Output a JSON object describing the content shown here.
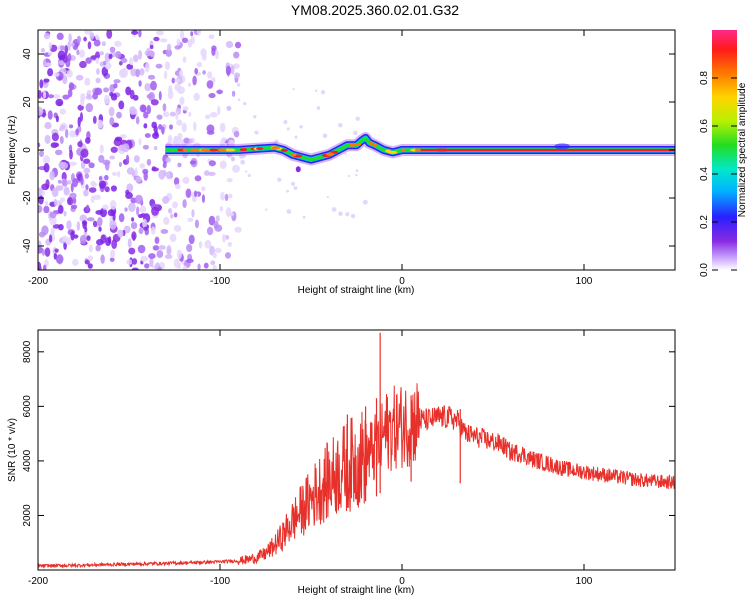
{
  "chart_data": [
    {
      "type": "heatmap",
      "title": "YM08.2025.360.02.01.G32",
      "xlabel": "Height of straight line (km)",
      "ylabel": "Frequency (Hz)",
      "xlim": [
        -200,
        150
      ],
      "ylim": [
        -50,
        50
      ],
      "x_ticks": [
        -200,
        -100,
        0,
        100
      ],
      "x_tick_labels": [
        "-200",
        "-100",
        "0",
        "100"
      ],
      "y_ticks": [
        -40,
        -20,
        0,
        20,
        40
      ],
      "y_tick_labels": [
        "-40",
        "-20",
        "0",
        "20",
        "40"
      ],
      "colorbar": {
        "label": "Normalized spectral amplitude",
        "range": [
          0,
          1
        ],
        "ticks": [
          0,
          0.2,
          0.4,
          0.6,
          0.8
        ],
        "tick_labels": [
          "0.0",
          "0.2",
          "0.4",
          "0.6",
          "0.8"
        ],
        "colors": [
          "#ffffff",
          "#c9a6ff",
          "#8a2be2",
          "#2a1fff",
          "#00b4ff",
          "#00e8c8",
          "#22dd22",
          "#b8f000",
          "#ffd400",
          "#ff7800",
          "#ff1a1a",
          "#ff2a8a"
        ]
      },
      "ridge": {
        "x": [
          -130,
          -120,
          -110,
          -100,
          -90,
          -80,
          -70,
          -65,
          -60,
          -55,
          -50,
          -45,
          -40,
          -35,
          -30,
          -25,
          -22,
          -20,
          -18,
          -15,
          -10,
          -5,
          0,
          10,
          20,
          40,
          80,
          120,
          150
        ],
        "frequency": [
          0,
          0,
          0,
          0,
          0,
          0.5,
          1,
          0,
          -2,
          -3,
          -4,
          -3,
          -2,
          0,
          2,
          2,
          4,
          5,
          3,
          2,
          0,
          -1,
          0,
          0,
          0,
          0,
          0,
          0,
          0
        ]
      },
      "noise_region_km": [
        -200,
        -90
      ]
    },
    {
      "type": "line",
      "xlabel": "Height of straight line (km)",
      "ylabel": "SNR (10 * v/v)",
      "xlim": [
        -200,
        150
      ],
      "ylim": [
        0,
        8800
      ],
      "x_ticks": [
        -200,
        -100,
        0,
        100
      ],
      "x_tick_labels": [
        "-200",
        "-100",
        "0",
        "100"
      ],
      "y_ticks": [
        2000,
        4000,
        6000,
        8000
      ],
      "y_tick_labels": [
        "2000",
        "4000",
        "6000",
        "8000"
      ],
      "color": "#e8302a",
      "series": [
        {
          "name": "SNR",
          "x": [
            -200,
            -180,
            -160,
            -140,
            -120,
            -100,
            -90,
            -85,
            -80,
            -75,
            -70,
            -65,
            -60,
            -55,
            -50,
            -45,
            -40,
            -35,
            -30,
            -25,
            -20,
            -15,
            -12,
            -10,
            -8,
            -5,
            0,
            5,
            10,
            15,
            20,
            25,
            30,
            35,
            40,
            45,
            50,
            55,
            60,
            65,
            70,
            80,
            90,
            100,
            110,
            120,
            130,
            140,
            150
          ],
          "y": [
            150,
            170,
            200,
            230,
            260,
            300,
            340,
            380,
            450,
            600,
            900,
            1300,
            1800,
            2200,
            2600,
            3000,
            3300,
            3600,
            3800,
            4000,
            4200,
            4400,
            4700,
            5000,
            5100,
            5200,
            5300,
            5400,
            5500,
            5500,
            5600,
            5600,
            5500,
            5000,
            4900,
            4800,
            4700,
            4600,
            4300,
            4300,
            4100,
            3900,
            3700,
            3600,
            3500,
            3400,
            3300,
            3250,
            3200
          ]
        }
      ],
      "spikes": [
        {
          "x": -12,
          "y": 8700
        },
        {
          "x": -14,
          "y": 6300
        },
        {
          "x": 5,
          "y": 6400
        },
        {
          "x": -20,
          "y": 6000
        },
        {
          "x": -30,
          "y": 5700
        },
        {
          "x": 32,
          "y": 5900
        }
      ]
    }
  ]
}
